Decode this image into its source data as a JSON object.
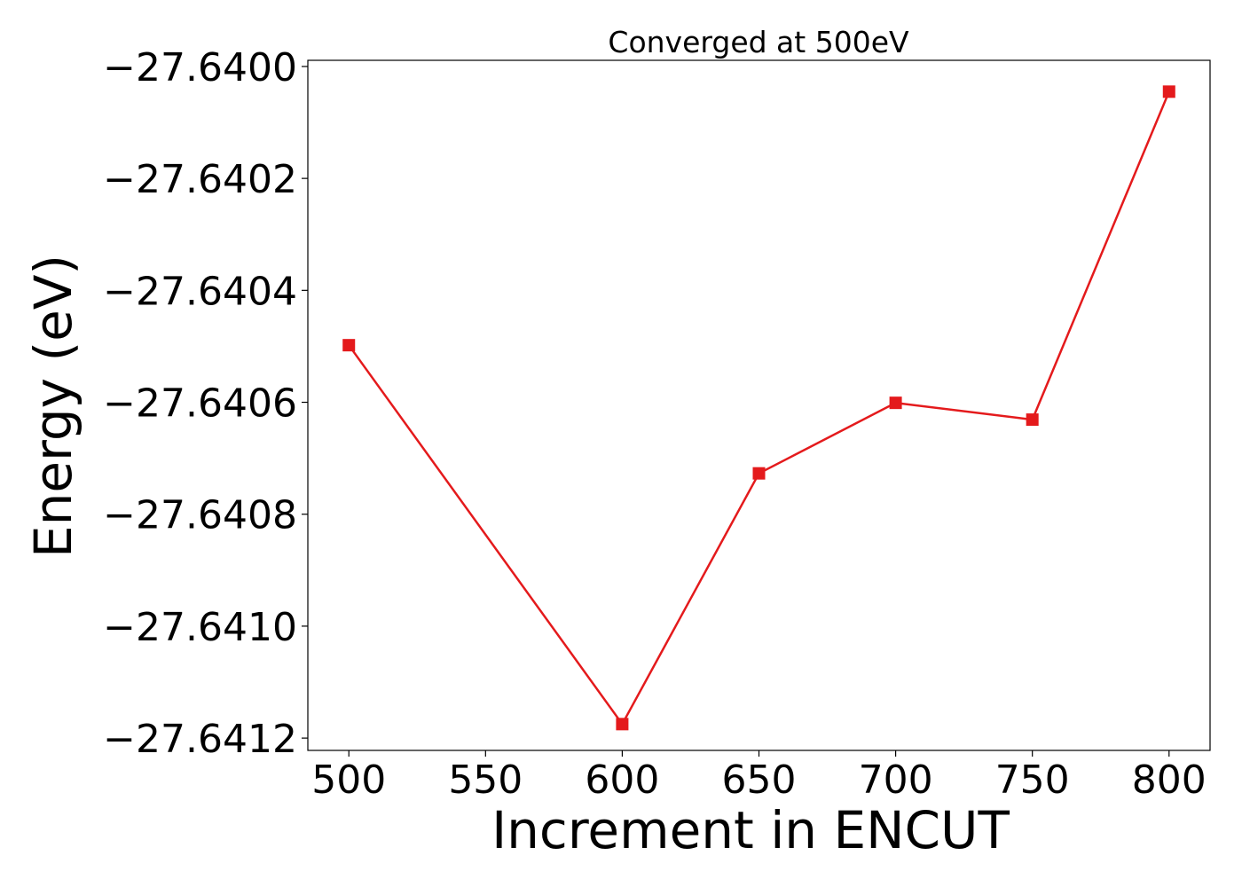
{
  "chart_data": {
    "type": "line",
    "title": "Converged at 500eV",
    "xlabel": "Increment in ENCUT",
    "ylabel": "Energy (eV)",
    "x": [
      500,
      600,
      650,
      700,
      750,
      800
    ],
    "series": [
      {
        "values": [
          -27.640498,
          -27.641175,
          -27.640727,
          -27.640601,
          -27.640631,
          -27.640045
        ],
        "color": "#e41a1c",
        "marker": "square"
      }
    ],
    "xticks": [
      500,
      550,
      600,
      650,
      700,
      750,
      800
    ],
    "xtick_labels": [
      "500",
      "550",
      "600",
      "650",
      "700",
      "750",
      "800"
    ],
    "yticks": [
      -27.64,
      -27.6402,
      -27.6404,
      -27.6406,
      -27.6408,
      -27.641,
      -27.6412
    ],
    "ytick_labels": [
      "−27.6400",
      "−27.6402",
      "−27.6404",
      "−27.6406",
      "−27.6408",
      "−27.6410",
      "−27.6412"
    ],
    "xlim": [
      485,
      815
    ],
    "ylim": [
      -27.641222,
      -27.639989
    ],
    "grid": false,
    "legend": "none"
  }
}
